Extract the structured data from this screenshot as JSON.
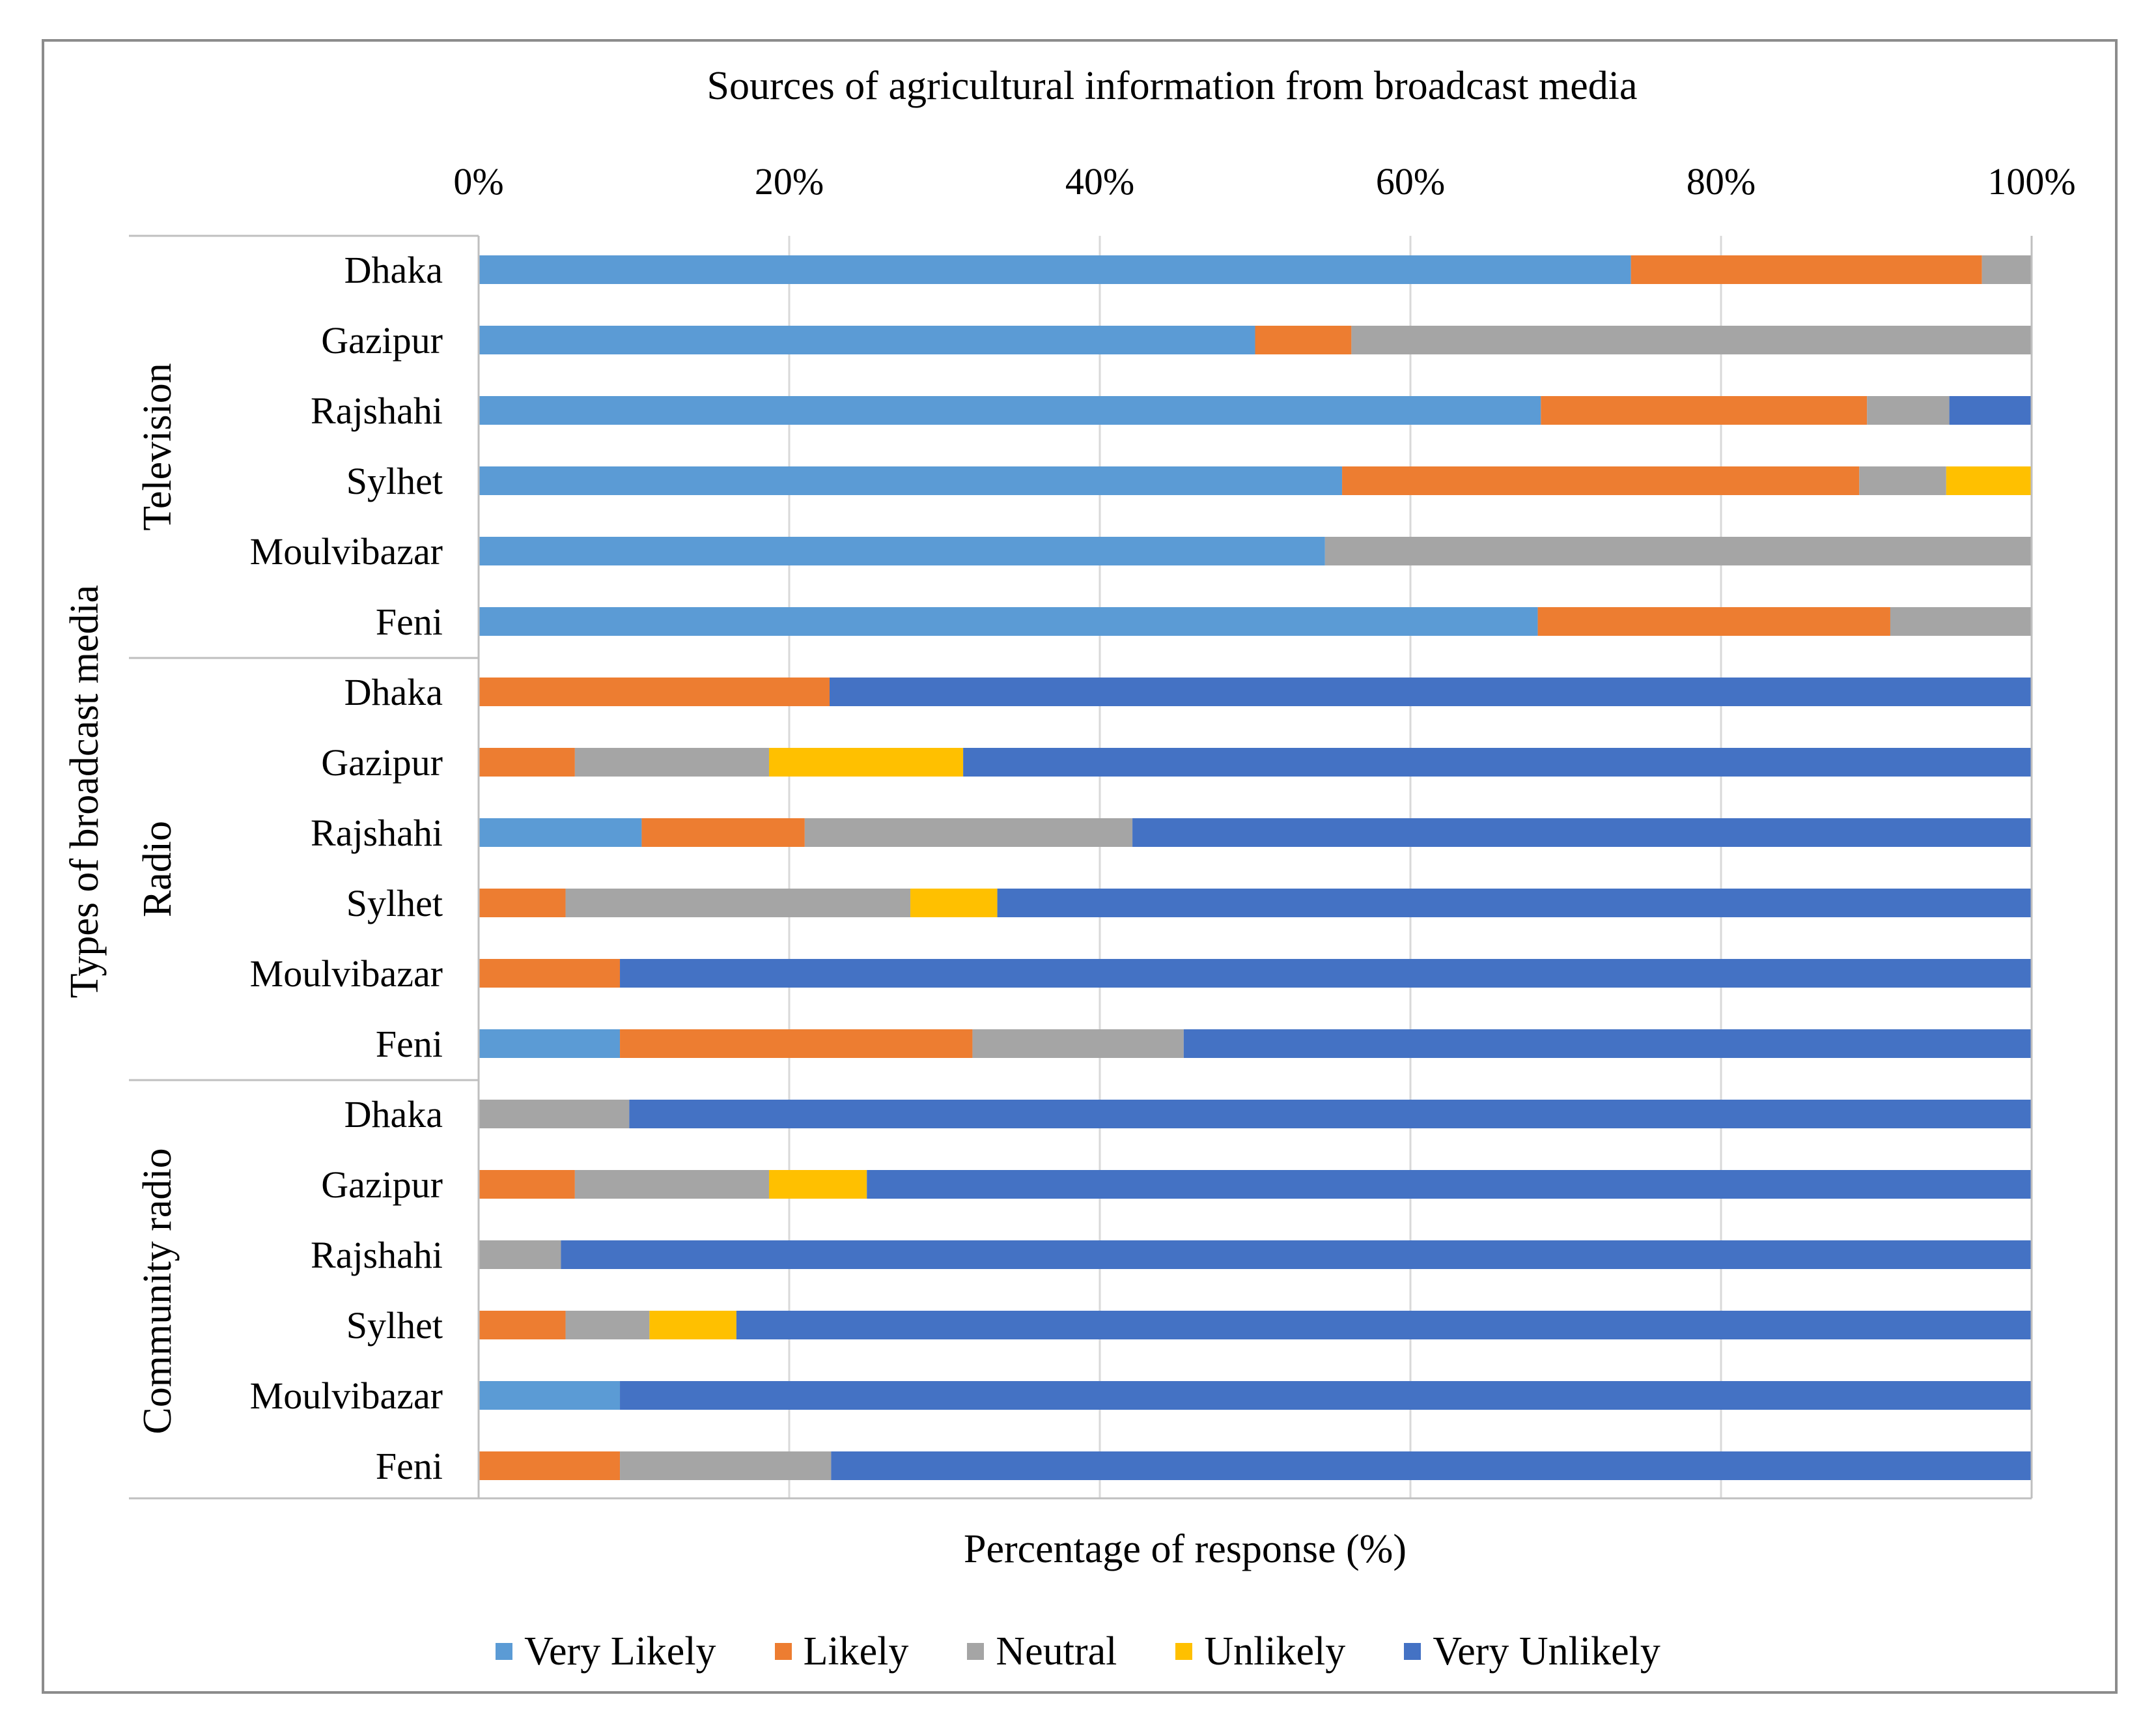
{
  "chart_data": {
    "type": "bar",
    "orientation": "horizontal",
    "stacked": "100%",
    "title": "Sources of agricultural information from broadcast media",
    "xlabel": "Percentage of response (%)",
    "ylabel": "Types of broadcast media",
    "xlim": [
      0,
      100
    ],
    "x_ticks": [
      "0%",
      "20%",
      "40%",
      "60%",
      "80%",
      "100%"
    ],
    "x_tick_values": [
      0,
      20,
      40,
      60,
      80,
      100
    ],
    "x_axis_position": "top",
    "grid": true,
    "legend_position": "bottom",
    "groups": [
      {
        "name": "Television",
        "categories": [
          "Dhaka",
          "Gazipur",
          "Rajshahi",
          "Sylhet",
          "Moulvibazar",
          "Feni"
        ],
        "series": [
          {
            "name": "Very Likely",
            "values": [
              74.2,
              50.0,
              68.4,
              55.6,
              54.5,
              68.2
            ]
          },
          {
            "name": "Likely",
            "values": [
              22.6,
              6.2,
              21.0,
              33.3,
              0.0,
              22.7
            ]
          },
          {
            "name": "Neutral",
            "values": [
              3.2,
              43.8,
              5.3,
              5.6,
              45.5,
              9.1
            ]
          },
          {
            "name": "Unlikely",
            "values": [
              0.0,
              0.0,
              0.0,
              5.5,
              0.0,
              0.0
            ]
          },
          {
            "name": "Very Unlikely",
            "values": [
              0.0,
              0.0,
              5.3,
              0.0,
              0.0,
              0.0
            ]
          }
        ]
      },
      {
        "name": "Radio",
        "categories": [
          "Dhaka",
          "Gazipur",
          "Rajshahi",
          "Sylhet",
          "Moulvibazar",
          "Feni"
        ],
        "series": [
          {
            "name": "Very Likely",
            "values": [
              0.0,
              0.0,
              10.5,
              0.0,
              0.0,
              9.1
            ]
          },
          {
            "name": "Likely",
            "values": [
              22.6,
              6.2,
              10.5,
              5.6,
              9.1,
              22.7
            ]
          },
          {
            "name": "Neutral",
            "values": [
              0.0,
              12.5,
              21.1,
              22.2,
              0.0,
              13.6
            ]
          },
          {
            "name": "Unlikely",
            "values": [
              0.0,
              12.5,
              0.0,
              5.6,
              0.0,
              0.0
            ]
          },
          {
            "name": "Very Unlikely",
            "values": [
              77.4,
              68.8,
              57.9,
              66.6,
              90.9,
              54.6
            ]
          }
        ]
      },
      {
        "name": "Community radio",
        "categories": [
          "Dhaka",
          "Gazipur",
          "Rajshahi",
          "Sylhet",
          "Moulvibazar",
          "Feni"
        ],
        "series": [
          {
            "name": "Very Likely",
            "values": [
              0.0,
              0.0,
              0.0,
              0.0,
              9.1,
              0.0
            ]
          },
          {
            "name": "Likely",
            "values": [
              0.0,
              6.2,
              0.0,
              5.6,
              0.0,
              9.1
            ]
          },
          {
            "name": "Neutral",
            "values": [
              9.7,
              12.5,
              5.3,
              5.4,
              0.0,
              13.6
            ]
          },
          {
            "name": "Unlikely",
            "values": [
              0.0,
              6.3,
              0.0,
              5.6,
              0.0,
              0.0
            ]
          },
          {
            "name": "Very Unlikely",
            "values": [
              90.3,
              75.0,
              94.7,
              83.4,
              90.9,
              77.3
            ]
          }
        ]
      }
    ],
    "legend": [
      "Very Likely",
      "Likely",
      "Neutral",
      "Unlikely",
      "Very Unlikely"
    ],
    "colors": {
      "Very Likely": "#5B9BD5",
      "Likely": "#ED7D31",
      "Neutral": "#A5A5A5",
      "Unlikely": "#FFC000",
      "Very Unlikely": "#4472C4"
    }
  }
}
